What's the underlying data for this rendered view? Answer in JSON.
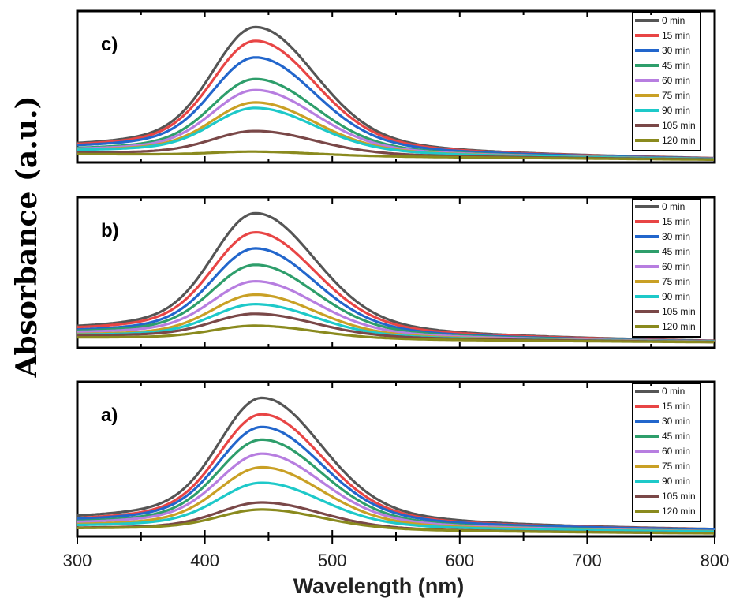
{
  "figure": {
    "ylabel": "Absorbance (a.u.)",
    "xlabel": "Wavelength (nm)",
    "xticks": [
      "300",
      "400",
      "500",
      "600",
      "700",
      "800"
    ]
  },
  "legend": [
    "0 min",
    "15 min",
    "30 min",
    "45 min",
    "60 min",
    "75 min",
    "90 min",
    "105 min",
    "120 min"
  ],
  "series_colors": [
    "#555555",
    "#e84545",
    "#2266cc",
    "#2e9e6b",
    "#b77ee0",
    "#c9a025",
    "#1ec9c9",
    "#7a4848",
    "#8a8a1e"
  ],
  "chart_data": [
    {
      "type": "line",
      "panel": "c)",
      "xlabel": "Wavelength (nm)",
      "ylabel": "Absorbance (a.u.)",
      "xlim": [
        300,
        800
      ],
      "ylim": [
        0,
        1.1
      ],
      "peak_nm": 440,
      "series": [
        {
          "name": "0 min",
          "baseline": 0.08,
          "peak": 1.0,
          "tail": 0.02
        },
        {
          "name": "15 min",
          "baseline": 0.08,
          "peak": 0.9,
          "tail": 0.02
        },
        {
          "name": "30 min",
          "baseline": 0.08,
          "peak": 0.78,
          "tail": 0.02
        },
        {
          "name": "45 min",
          "baseline": 0.07,
          "peak": 0.62,
          "tail": 0.02
        },
        {
          "name": "60 min",
          "baseline": 0.07,
          "peak": 0.54,
          "tail": 0.02
        },
        {
          "name": "75 min",
          "baseline": 0.07,
          "peak": 0.45,
          "tail": 0.02
        },
        {
          "name": "90 min",
          "baseline": 0.07,
          "peak": 0.41,
          "tail": 0.02
        },
        {
          "name": "105 min",
          "baseline": 0.06,
          "peak": 0.24,
          "tail": 0.02
        },
        {
          "name": "120 min",
          "baseline": 0.06,
          "peak": 0.09,
          "tail": 0.02
        }
      ]
    },
    {
      "type": "line",
      "panel": "b)",
      "xlabel": "Wavelength (nm)",
      "ylabel": "Absorbance (a.u.)",
      "xlim": [
        300,
        800
      ],
      "ylim": [
        0,
        1.1
      ],
      "peak_nm": 440,
      "series": [
        {
          "name": "0 min",
          "baseline": 0.1,
          "peak": 1.0,
          "tail": 0.04
        },
        {
          "name": "15 min",
          "baseline": 0.1,
          "peak": 0.86,
          "tail": 0.04
        },
        {
          "name": "30 min",
          "baseline": 0.09,
          "peak": 0.74,
          "tail": 0.04
        },
        {
          "name": "45 min",
          "baseline": 0.09,
          "peak": 0.62,
          "tail": 0.04
        },
        {
          "name": "60 min",
          "baseline": 0.09,
          "peak": 0.5,
          "tail": 0.04
        },
        {
          "name": "75 min",
          "baseline": 0.08,
          "peak": 0.4,
          "tail": 0.04
        },
        {
          "name": "90 min",
          "baseline": 0.08,
          "peak": 0.33,
          "tail": 0.04
        },
        {
          "name": "105 min",
          "baseline": 0.08,
          "peak": 0.26,
          "tail": 0.04
        },
        {
          "name": "120 min",
          "baseline": 0.07,
          "peak": 0.17,
          "tail": 0.04
        }
      ]
    },
    {
      "type": "line",
      "panel": "a)",
      "xlabel": "Wavelength (nm)",
      "ylabel": "Absorbance (a.u.)",
      "xlim": [
        300,
        800
      ],
      "ylim": [
        0,
        1.1
      ],
      "peak_nm": 445,
      "series": [
        {
          "name": "0 min",
          "baseline": 0.09,
          "peak": 1.0,
          "tail": 0.04
        },
        {
          "name": "15 min",
          "baseline": 0.08,
          "peak": 0.88,
          "tail": 0.04
        },
        {
          "name": "30 min",
          "baseline": 0.08,
          "peak": 0.79,
          "tail": 0.04
        },
        {
          "name": "45 min",
          "baseline": 0.07,
          "peak": 0.7,
          "tail": 0.03
        },
        {
          "name": "60 min",
          "baseline": 0.07,
          "peak": 0.6,
          "tail": 0.03
        },
        {
          "name": "75 min",
          "baseline": 0.06,
          "peak": 0.5,
          "tail": 0.03
        },
        {
          "name": "90 min",
          "baseline": 0.06,
          "peak": 0.39,
          "tail": 0.03
        },
        {
          "name": "105 min",
          "baseline": 0.05,
          "peak": 0.25,
          "tail": 0.02
        },
        {
          "name": "120 min",
          "baseline": 0.05,
          "peak": 0.2,
          "tail": 0.02
        }
      ]
    }
  ]
}
